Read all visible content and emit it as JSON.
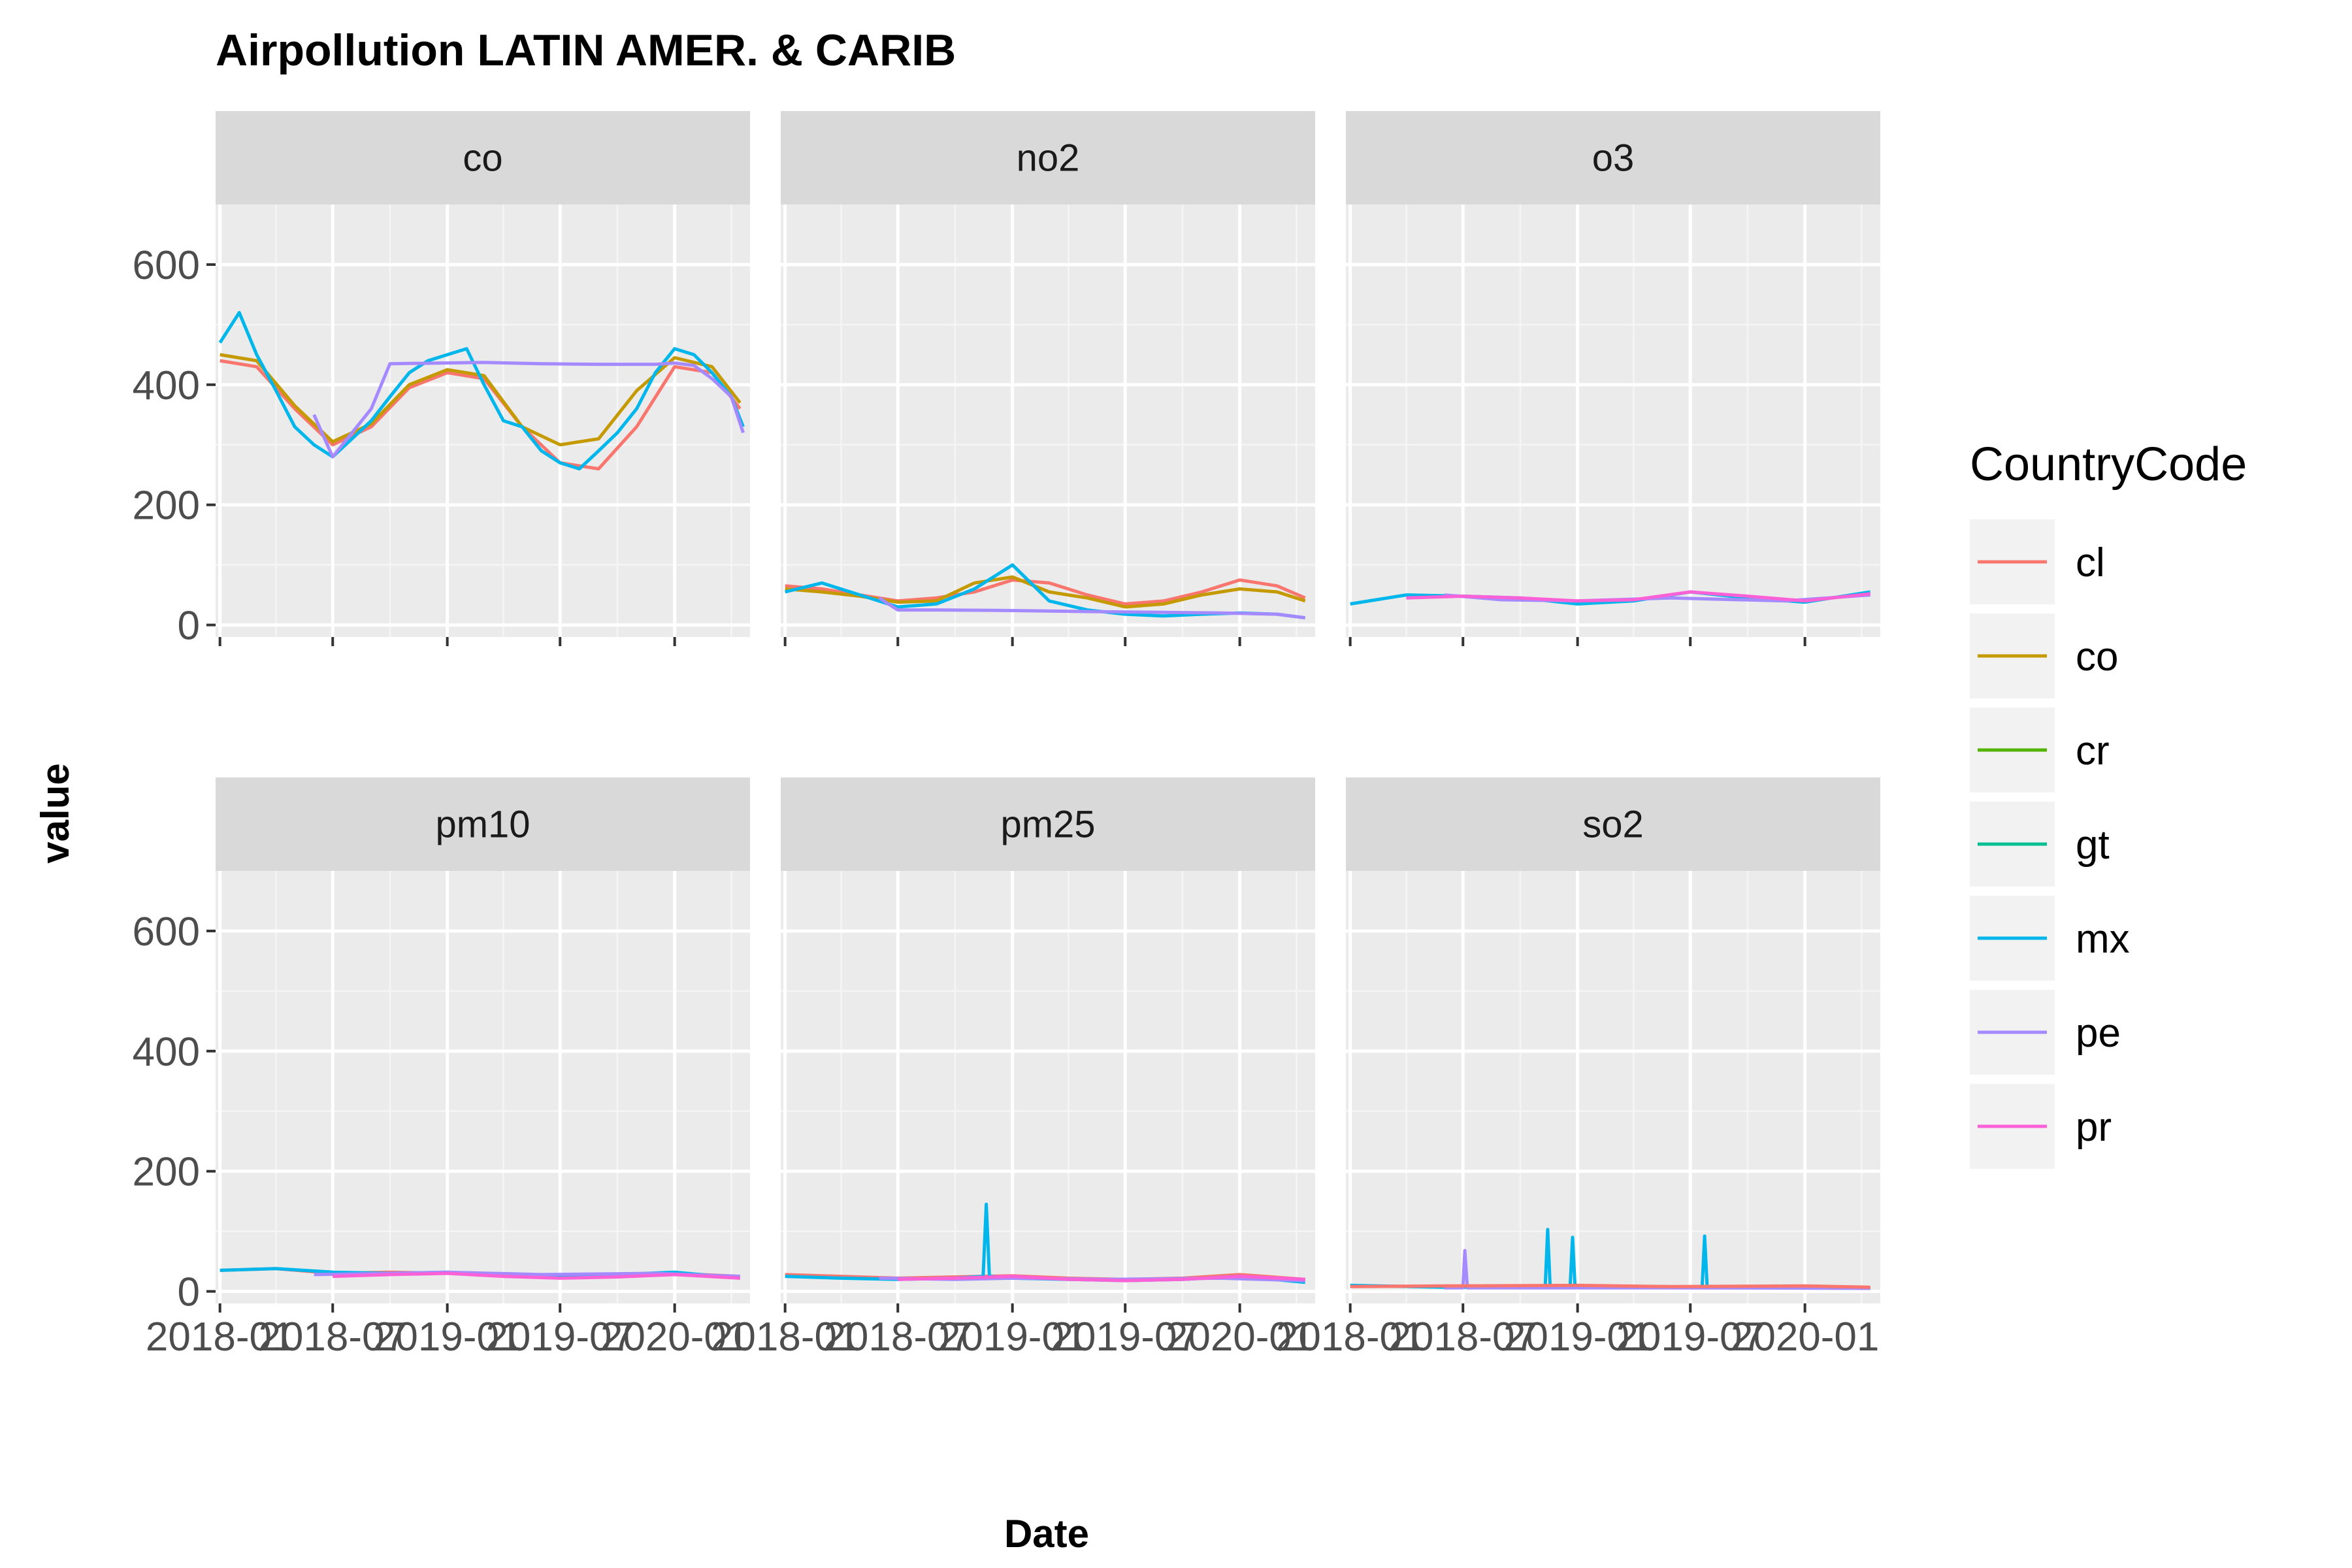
{
  "chart_data": {
    "type": "line",
    "title": "Airpollution LATIN AMER. & CARIB",
    "xlabel": "Date",
    "ylabel": "value",
    "ylim": [
      -20,
      700
    ],
    "yticks": [
      0,
      200,
      400,
      600
    ],
    "xlim": [
      "2017-12-25",
      "2020-05-01"
    ],
    "xtick_values": [
      "2018-01-01",
      "2018-07-01",
      "2019-01-01",
      "2019-07-01",
      "2020-01-01"
    ],
    "xtick_labels": [
      "2018-01",
      "2018-07",
      "2019-01",
      "2019-07",
      "2020-01"
    ],
    "grid": true,
    "legend": {
      "title": "CountryCode",
      "placement": "right",
      "entries": [
        "cl",
        "co",
        "cr",
        "gt",
        "mx",
        "pe",
        "pr"
      ]
    },
    "colors": {
      "cl": "#F8766D",
      "co": "#C49A00",
      "cr": "#53B400",
      "gt": "#00C094",
      "mx": "#00B6EB",
      "pe": "#A58AFF",
      "pr": "#FB61D7"
    },
    "panels": [
      {
        "name": "co",
        "series": [
          {
            "name": "cl",
            "x": [
              "2018-01-01",
              "2018-03-01",
              "2018-05-01",
              "2018-07-01",
              "2018-09-01",
              "2018-11-01",
              "2019-01-01",
              "2019-03-01",
              "2019-05-01",
              "2019-07-01",
              "2019-09-01",
              "2019-11-01",
              "2020-01-01",
              "2020-03-01",
              "2020-04-15"
            ],
            "y": [
              440,
              430,
              360,
              300,
              330,
              395,
              420,
              410,
              330,
              270,
              260,
              330,
              430,
              420,
              360
            ]
          },
          {
            "name": "co",
            "x": [
              "2018-01-01",
              "2018-03-01",
              "2018-05-01",
              "2018-07-01",
              "2018-09-01",
              "2018-11-01",
              "2019-01-01",
              "2019-03-01",
              "2019-05-01",
              "2019-07-01",
              "2019-09-01",
              "2019-11-01",
              "2020-01-01",
              "2020-03-01",
              "2020-04-15"
            ],
            "y": [
              450,
              440,
              365,
              305,
              335,
              400,
              425,
              415,
              330,
              300,
              310,
              390,
              445,
              430,
              370
            ]
          },
          {
            "name": "mx",
            "x": [
              "2018-01-01",
              "2018-02-01",
              "2018-03-01",
              "2018-04-01",
              "2018-05-01",
              "2018-06-01",
              "2018-07-01",
              "2018-08-01",
              "2018-09-01",
              "2018-10-01",
              "2018-11-01",
              "2018-12-01",
              "2019-01-01",
              "2019-02-01",
              "2019-03-01",
              "2019-04-01",
              "2019-05-01",
              "2019-06-01",
              "2019-07-01",
              "2019-08-01",
              "2019-09-01",
              "2019-10-01",
              "2019-11-01",
              "2019-12-01",
              "2020-01-01",
              "2020-02-01",
              "2020-03-01",
              "2020-04-01",
              "2020-04-20"
            ],
            "y": [
              470,
              520,
              450,
              390,
              330,
              300,
              280,
              310,
              340,
              380,
              420,
              440,
              450,
              460,
              400,
              340,
              330,
              290,
              270,
              260,
              290,
              320,
              360,
              420,
              460,
              450,
              420,
              380,
              330
            ]
          },
          {
            "name": "pe",
            "x": [
              "2018-06-01",
              "2018-07-01",
              "2018-08-01",
              "2018-09-01",
              "2018-10-01",
              "2019-03-01",
              "2019-06-01",
              "2019-09-01",
              "2019-12-01",
              "2020-01-01",
              "2020-02-01",
              "2020-03-01",
              "2020-04-01",
              "2020-04-20"
            ],
            "y": [
              350,
              280,
              320,
              360,
              435,
              437,
              435,
              434,
              434,
              436,
              432,
              410,
              380,
              320
            ]
          }
        ]
      },
      {
        "name": "no2",
        "series": [
          {
            "name": "cl",
            "x": [
              "2018-01-01",
              "2018-03-01",
              "2018-05-01",
              "2018-07-01",
              "2018-09-01",
              "2018-11-01",
              "2019-01-01",
              "2019-03-01",
              "2019-05-01",
              "2019-07-01",
              "2019-09-01",
              "2019-11-01",
              "2020-01-01",
              "2020-03-01",
              "2020-04-15"
            ],
            "y": [
              65,
              60,
              50,
              40,
              45,
              55,
              75,
              70,
              50,
              35,
              40,
              55,
              75,
              65,
              45
            ]
          },
          {
            "name": "co",
            "x": [
              "2018-01-01",
              "2018-03-01",
              "2018-05-01",
              "2018-07-01",
              "2018-09-01",
              "2018-11-01",
              "2019-01-01",
              "2019-03-01",
              "2019-05-01",
              "2019-07-01",
              "2019-09-01",
              "2019-11-01",
              "2020-01-01",
              "2020-03-01",
              "2020-04-15"
            ],
            "y": [
              60,
              55,
              48,
              38,
              40,
              70,
              80,
              55,
              45,
              30,
              35,
              50,
              60,
              55,
              40
            ]
          },
          {
            "name": "mx",
            "x": [
              "2018-01-01",
              "2018-03-01",
              "2018-05-01",
              "2018-07-01",
              "2018-09-01",
              "2018-11-01",
              "2019-01-01",
              "2019-03-01",
              "2019-05-01",
              "2019-07-01",
              "2019-09-01",
              "2019-11-01",
              "2020-01-01",
              "2020-03-01",
              "2020-04-15"
            ],
            "y": [
              55,
              70,
              50,
              30,
              35,
              60,
              100,
              40,
              25,
              18,
              15,
              18,
              20,
              18,
              12
            ]
          },
          {
            "name": "pe",
            "x": [
              "2018-06-01",
              "2018-07-01",
              "2018-09-01",
              "2019-01-01",
              "2019-06-01",
              "2019-12-01",
              "2020-03-01",
              "2020-04-15"
            ],
            "y": [
              45,
              25,
              25,
              24,
              22,
              20,
              18,
              12
            ]
          }
        ]
      },
      {
        "name": "o3",
        "series": [
          {
            "name": "mx",
            "x": [
              "2018-01-01",
              "2018-04-01",
              "2018-07-01",
              "2018-10-01",
              "2019-01-01",
              "2019-04-01",
              "2019-07-01",
              "2019-10-01",
              "2020-01-01",
              "2020-04-15"
            ],
            "y": [
              35,
              50,
              48,
              45,
              35,
              40,
              55,
              45,
              38,
              55
            ]
          },
          {
            "name": "pe",
            "x": [
              "2018-06-01",
              "2018-09-01",
              "2019-01-01",
              "2019-06-01",
              "2019-12-01",
              "2020-04-15"
            ],
            "y": [
              50,
              42,
              40,
              45,
              40,
              50
            ]
          },
          {
            "name": "pr",
            "x": [
              "2018-04-01",
              "2018-07-01",
              "2018-10-01",
              "2019-01-01",
              "2019-04-01",
              "2019-07-01",
              "2019-10-01",
              "2020-01-01",
              "2020-04-15"
            ],
            "y": [
              45,
              48,
              45,
              40,
              42,
              55,
              48,
              40,
              52
            ]
          }
        ]
      },
      {
        "name": "pm10",
        "series": [
          {
            "name": "cl",
            "x": [
              "2018-01-01",
              "2018-04-01",
              "2018-07-01",
              "2018-10-01",
              "2019-01-01",
              "2019-04-01",
              "2019-07-01",
              "2019-10-01",
              "2020-01-01",
              "2020-04-15"
            ],
            "y": [
              35,
              38,
              30,
              32,
              30,
              28,
              25,
              27,
              30,
              25
            ]
          },
          {
            "name": "mx",
            "x": [
              "2018-01-01",
              "2018-04-01",
              "2018-07-01",
              "2018-10-01",
              "2019-01-01",
              "2019-04-01",
              "2019-07-01",
              "2019-10-01",
              "2020-01-01",
              "2020-04-15"
            ],
            "y": [
              35,
              38,
              32,
              30,
              32,
              28,
              25,
              28,
              32,
              22
            ]
          },
          {
            "name": "pe",
            "x": [
              "2018-06-01",
              "2018-10-01",
              "2019-01-01",
              "2019-06-01",
              "2019-12-01",
              "2020-04-15"
            ],
            "y": [
              28,
              30,
              32,
              28,
              30,
              25
            ]
          },
          {
            "name": "pr",
            "x": [
              "2018-07-01",
              "2018-10-01",
              "2019-01-01",
              "2019-04-01",
              "2019-07-01",
              "2019-10-01",
              "2020-01-01",
              "2020-04-15"
            ],
            "y": [
              25,
              28,
              30,
              25,
              22,
              24,
              28,
              22
            ]
          }
        ]
      },
      {
        "name": "pm25",
        "series": [
          {
            "name": "cl",
            "x": [
              "2018-01-01",
              "2018-04-01",
              "2018-07-01",
              "2018-10-01",
              "2019-01-01",
              "2019-04-01",
              "2019-07-01",
              "2019-10-01",
              "2020-01-01",
              "2020-04-15"
            ],
            "y": [
              28,
              25,
              22,
              24,
              26,
              22,
              20,
              22,
              28,
              20
            ]
          },
          {
            "name": "mx",
            "x": [
              "2018-01-01",
              "2018-04-01",
              "2018-07-01",
              "2018-10-01",
              "2018-11-15",
              "2018-11-20",
              "2018-11-25",
              "2019-01-01",
              "2019-04-01",
              "2019-07-01",
              "2019-10-01",
              "2020-01-01",
              "2020-04-15"
            ],
            "y": [
              25,
              22,
              20,
              22,
              25,
              145,
              25,
              22,
              20,
              18,
              20,
              25,
              15
            ]
          },
          {
            "name": "pe",
            "x": [
              "2018-06-01",
              "2018-10-01",
              "2019-01-01",
              "2019-06-01",
              "2019-12-01",
              "2020-04-15"
            ],
            "y": [
              22,
              20,
              22,
              20,
              22,
              18
            ]
          },
          {
            "name": "pr",
            "x": [
              "2018-07-01",
              "2018-10-01",
              "2019-01-01",
              "2019-04-01",
              "2019-07-01",
              "2019-10-01",
              "2020-01-01",
              "2020-04-15"
            ],
            "y": [
              20,
              22,
              25,
              20,
              18,
              20,
              25,
              20
            ]
          }
        ]
      },
      {
        "name": "so2",
        "series": [
          {
            "name": "mx",
            "x": [
              "2018-01-01",
              "2018-06-01",
              "2018-11-10",
              "2018-11-14",
              "2018-11-18",
              "2018-12-20",
              "2018-12-24",
              "2018-12-28",
              "2019-01-01",
              "2019-07-20",
              "2019-07-24",
              "2019-07-28",
              "2020-01-01",
              "2020-04-15"
            ],
            "y": [
              10,
              7,
              7,
              103,
              7,
              7,
              90,
              7,
              7,
              7,
              92,
              7,
              7,
              6
            ]
          },
          {
            "name": "pe",
            "x": [
              "2018-06-01",
              "2018-07-01",
              "2018-07-04",
              "2018-07-08",
              "2018-10-01",
              "2019-06-01",
              "2020-04-15"
            ],
            "y": [
              6,
              6,
              68,
              6,
              6,
              6,
              5
            ]
          },
          {
            "name": "cl",
            "x": [
              "2018-01-01",
              "2018-06-01",
              "2019-01-01",
              "2019-06-01",
              "2020-01-01",
              "2020-04-15"
            ],
            "y": [
              8,
              9,
              10,
              8,
              9,
              7
            ]
          }
        ]
      }
    ]
  }
}
